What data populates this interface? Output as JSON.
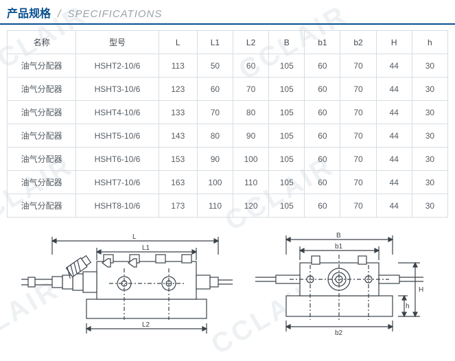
{
  "header": {
    "cn": "产品规格",
    "sep": "/",
    "en": "SPECIFICATIONS"
  },
  "colors": {
    "accent": "#0a4f8f",
    "header_grey": "#9aa3aa",
    "border": "#d6dde2",
    "text": "#555c63",
    "watermark": "#eef1f3",
    "drawing_stroke": "#3a424a"
  },
  "watermark_text": "CCLAIR",
  "table": {
    "columns": [
      "名称",
      "型号",
      "L",
      "L1",
      "L2",
      "B",
      "b1",
      "b2",
      "H",
      "h"
    ],
    "rows": [
      [
        "油气分配器",
        "HSHT2-10/6",
        "113",
        "50",
        "60",
        "105",
        "60",
        "70",
        "44",
        "30"
      ],
      [
        "油气分配器",
        "HSHT3-10/6",
        "123",
        "60",
        "70",
        "105",
        "60",
        "70",
        "44",
        "30"
      ],
      [
        "油气分配器",
        "HSHT4-10/6",
        "133",
        "70",
        "80",
        "105",
        "60",
        "70",
        "44",
        "30"
      ],
      [
        "油气分配器",
        "HSHT5-10/6",
        "143",
        "80",
        "90",
        "105",
        "60",
        "70",
        "44",
        "30"
      ],
      [
        "油气分配器",
        "HSHT6-10/6",
        "153",
        "90",
        "100",
        "105",
        "60",
        "70",
        "44",
        "30"
      ],
      [
        "油气分配器",
        "HSHT7-10/6",
        "163",
        "100",
        "110",
        "105",
        "60",
        "70",
        "44",
        "30"
      ],
      [
        "油气分配器",
        "HSHT8-10/6",
        "173",
        "110",
        "120",
        "105",
        "60",
        "70",
        "44",
        "30"
      ]
    ]
  },
  "drawing_labels": {
    "left": {
      "L": "L",
      "L1": "L1",
      "L2": "L2"
    },
    "right": {
      "B": "B",
      "b1": "b1",
      "b2": "b2",
      "H": "H",
      "h": "h"
    }
  }
}
